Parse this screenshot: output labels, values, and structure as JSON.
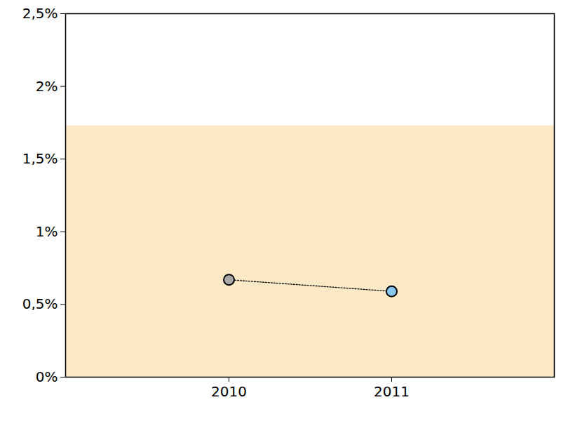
{
  "chart_data": {
    "type": "line",
    "categories": [
      "2010",
      "2011"
    ],
    "values": [
      0.67,
      0.59
    ],
    "colors": [
      "#aaaaaa",
      "#87c6ee"
    ],
    "color": "#000000",
    "marker": "circle",
    "line_style": "dotted",
    "band": {
      "values": [
        0,
        1.73
      ],
      "color": "#fde9c5"
    },
    "ylim": [
      0,
      2.5
    ],
    "yticks": [
      {
        "value": 0,
        "label": "0%"
      },
      {
        "value": 0.5,
        "label": "0,5%"
      },
      {
        "value": 1,
        "label": "1%"
      },
      {
        "value": 1.5,
        "label": "1,5%"
      },
      {
        "value": 2,
        "label": "2%"
      },
      {
        "value": 2.5,
        "label": "2,5%"
      }
    ]
  }
}
